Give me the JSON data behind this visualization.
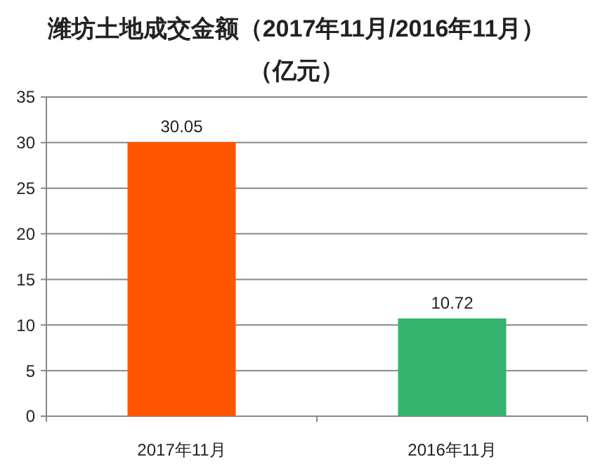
{
  "chart_data": {
    "type": "bar",
    "title": "潍坊土地成交金额（2017年11月/2016年11月）",
    "subtitle": "（亿元）",
    "categories": [
      "2017年11月",
      "2016年11月"
    ],
    "values": [
      30.05,
      10.72
    ],
    "colors": [
      "#ff5500",
      "#36b36e"
    ],
    "ylim": [
      0,
      35
    ],
    "yticks": [
      0,
      5,
      10,
      15,
      20,
      25,
      30,
      35
    ],
    "grid": "y",
    "data_labels": true
  }
}
